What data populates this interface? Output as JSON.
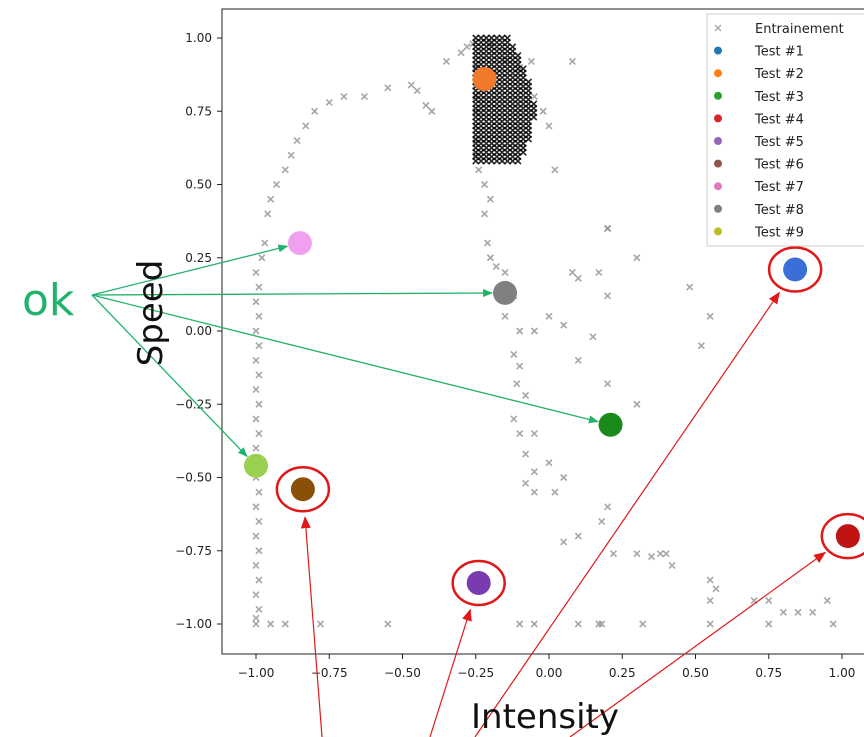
{
  "chart_data": {
    "type": "scatter",
    "xlabel": "Intensity",
    "ylabel": "Speed",
    "xlim": [
      -1.12,
      1.1
    ],
    "ylim": [
      -1.11,
      1.11
    ],
    "x_ticks": [
      "−1.00",
      "−0.75",
      "−0.50",
      "−0.25",
      "0.00",
      "0.25",
      "0.50",
      "0.75",
      "1.00"
    ],
    "y_ticks": [
      "1.00",
      "0.75",
      "0.50",
      "0.25",
      "0.00",
      "−0.25",
      "−0.50",
      "−0.75",
      "−1.00"
    ],
    "grid": false,
    "legend_position": "top-right",
    "training": {
      "name": "Entrainement",
      "color": "#7f7f7f",
      "points": [
        [
          -1,
          -1
        ],
        [
          -1,
          -0.98
        ],
        [
          -0.99,
          -0.95
        ],
        [
          -1,
          -0.9
        ],
        [
          -0.99,
          -0.85
        ],
        [
          -1,
          -0.8
        ],
        [
          -0.99,
          -0.75
        ],
        [
          -1,
          -0.7
        ],
        [
          -0.99,
          -0.65
        ],
        [
          -1,
          -0.6
        ],
        [
          -0.99,
          -0.55
        ],
        [
          -1,
          -0.5
        ],
        [
          -0.99,
          -0.45
        ],
        [
          -1,
          -0.4
        ],
        [
          -0.99,
          -0.35
        ],
        [
          -1,
          -0.3
        ],
        [
          -0.99,
          -0.25
        ],
        [
          -1,
          -0.2
        ],
        [
          -0.99,
          -0.15
        ],
        [
          -1,
          -0.1
        ],
        [
          -0.99,
          -0.05
        ],
        [
          -1,
          0
        ],
        [
          -0.99,
          0.05
        ],
        [
          -1,
          0.1
        ],
        [
          -0.99,
          0.15
        ],
        [
          -1,
          0.2
        ],
        [
          -0.98,
          0.25
        ],
        [
          -0.97,
          0.3
        ],
        [
          -0.95,
          -1
        ],
        [
          -0.9,
          -1
        ],
        [
          -0.78,
          -1
        ],
        [
          -0.55,
          -1
        ],
        [
          -0.1,
          -1
        ],
        [
          -0.05,
          -1
        ],
        [
          0.1,
          -1
        ],
        [
          0.17,
          -1
        ],
        [
          0.18,
          -1
        ],
        [
          0.32,
          -1
        ],
        [
          0.55,
          -1
        ],
        [
          0.75,
          -1
        ],
        [
          0.97,
          -1
        ],
        [
          -0.96,
          0.4
        ],
        [
          -0.95,
          0.45
        ],
        [
          -0.93,
          0.5
        ],
        [
          -0.9,
          0.55
        ],
        [
          -0.88,
          0.6
        ],
        [
          -0.86,
          0.65
        ],
        [
          -0.83,
          0.7
        ],
        [
          -0.8,
          0.75
        ],
        [
          -0.75,
          0.78
        ],
        [
          -0.7,
          0.8
        ],
        [
          -0.63,
          0.8
        ],
        [
          -0.55,
          0.83
        ],
        [
          -0.47,
          0.84
        ],
        [
          -0.45,
          0.82
        ],
        [
          -0.42,
          0.77
        ],
        [
          -0.4,
          0.75
        ],
        [
          -0.35,
          0.92
        ],
        [
          -0.3,
          0.95
        ],
        [
          -0.28,
          0.97
        ],
        [
          -0.26,
          0.98
        ],
        [
          -0.2,
          0.98
        ],
        [
          -0.15,
          0.92
        ],
        [
          -0.1,
          0.9
        ],
        [
          -0.06,
          0.92
        ],
        [
          0.08,
          0.92
        ],
        [
          -0.05,
          0.8
        ],
        [
          -0.02,
          0.75
        ],
        [
          0,
          0.7
        ],
        [
          0.02,
          0.55
        ],
        [
          0.2,
          0.35
        ],
        [
          0.3,
          0.25
        ],
        [
          -0.25,
          0.9
        ],
        [
          -0.25,
          0.85
        ],
        [
          -0.25,
          0.8
        ],
        [
          -0.25,
          0.75
        ],
        [
          -0.25,
          0.7
        ],
        [
          -0.25,
          0.65
        ],
        [
          -0.25,
          0.6
        ],
        [
          -0.24,
          0.55
        ],
        [
          -0.22,
          0.5
        ],
        [
          -0.2,
          0.45
        ],
        [
          -0.22,
          0.4
        ],
        [
          -0.21,
          0.3
        ],
        [
          -0.2,
          0.25
        ],
        [
          -0.18,
          0.22
        ],
        [
          -0.15,
          0.2
        ],
        [
          -0.15,
          0.15
        ],
        [
          -0.12,
          0.12
        ],
        [
          -0.15,
          0.05
        ],
        [
          -0.1,
          0
        ],
        [
          -0.05,
          0
        ],
        [
          -0.12,
          -0.08
        ],
        [
          -0.1,
          -0.12
        ],
        [
          -0.11,
          -0.18
        ],
        [
          -0.08,
          -0.22
        ],
        [
          -0.12,
          -0.3
        ],
        [
          -0.1,
          -0.35
        ],
        [
          -0.05,
          -0.35
        ],
        [
          -0.08,
          -0.42
        ],
        [
          -0.05,
          -0.48
        ],
        [
          -0.08,
          -0.52
        ],
        [
          0,
          -0.45
        ],
        [
          0.05,
          -0.5
        ],
        [
          -0.05,
          -0.55
        ],
        [
          0.02,
          -0.55
        ],
        [
          0.05,
          -0.72
        ],
        [
          0.1,
          -0.7
        ],
        [
          0.18,
          -0.65
        ],
        [
          0.2,
          -0.6
        ],
        [
          0.22,
          -0.76
        ],
        [
          0.3,
          -0.76
        ],
        [
          0.35,
          -0.77
        ],
        [
          0.38,
          -0.76
        ],
        [
          0.4,
          -0.76
        ],
        [
          0.42,
          -0.8
        ],
        [
          0.55,
          -0.85
        ],
        [
          0.57,
          -0.88
        ],
        [
          0.55,
          -0.92
        ],
        [
          0.7,
          -0.92
        ],
        [
          0.75,
          -0.92
        ],
        [
          0.8,
          -0.96
        ],
        [
          0.85,
          -0.96
        ],
        [
          0.9,
          -0.96
        ],
        [
          0.95,
          -0.92
        ],
        [
          0.2,
          0.35
        ],
        [
          0.1,
          0.18
        ],
        [
          0.08,
          0.2
        ],
        [
          0.17,
          0.2
        ],
        [
          0.2,
          0.12
        ],
        [
          0.48,
          0.15
        ],
        [
          0.55,
          0.05
        ],
        [
          0.52,
          -0.05
        ],
        [
          0.2,
          -0.18
        ],
        [
          0.3,
          -0.25
        ],
        [
          0.15,
          -0.02
        ],
        [
          0.1,
          -0.1
        ],
        [
          0,
          0.05
        ],
        [
          0.05,
          0.02
        ]
      ]
    },
    "dense_cluster": {
      "x_range": [
        -0.25,
        -0.05
      ],
      "y_range": [
        0.58,
        1.0
      ],
      "color": "#000000"
    },
    "test_series": [
      {
        "name": "Test #1",
        "x": 0.84,
        "y": 0.21,
        "color": "#3a6fd8",
        "circled": true
      },
      {
        "name": "Test #2",
        "x": -0.22,
        "y": 0.86,
        "color": "#f07a2a",
        "circled": false
      },
      {
        "name": "Test #3",
        "x": 0.21,
        "y": -0.32,
        "color": "#1a8a1a",
        "circled": false
      },
      {
        "name": "Test #4",
        "x": 1.02,
        "y": -0.7,
        "color": "#c01414",
        "circled": true
      },
      {
        "name": "Test #5",
        "x": -0.24,
        "y": -0.86,
        "color": "#7a3ab0",
        "circled": true
      },
      {
        "name": "Test #6",
        "x": -0.84,
        "y": -0.54,
        "color": "#8a5008",
        "circled": true
      },
      {
        "name": "Test #7",
        "x": -0.85,
        "y": 0.3,
        "color": "#f0a0f0",
        "circled": false
      },
      {
        "name": "Test #8",
        "x": -0.15,
        "y": 0.13,
        "color": "#808080",
        "circled": false
      },
      {
        "name": "Test #9",
        "x": -1.0,
        "y": -0.46,
        "color": "#9ad050",
        "circled": false
      }
    ],
    "legend_series_colors": [
      "#1f77b4",
      "#ff7f0e",
      "#2ca02c",
      "#d62728",
      "#9467bd",
      "#8c564b",
      "#e377c2",
      "#7f7f7f",
      "#bcbd22"
    ],
    "annotation_ok": {
      "text": "ok",
      "color": "#21b36b",
      "targets": [
        "Test #7",
        "Test #8",
        "Test #3",
        "Test #9"
      ]
    },
    "annotation_bad": {
      "color": "#e01818",
      "targets": [
        "Test #6",
        "Test #5",
        "Test #1",
        "Test #4"
      ]
    }
  }
}
